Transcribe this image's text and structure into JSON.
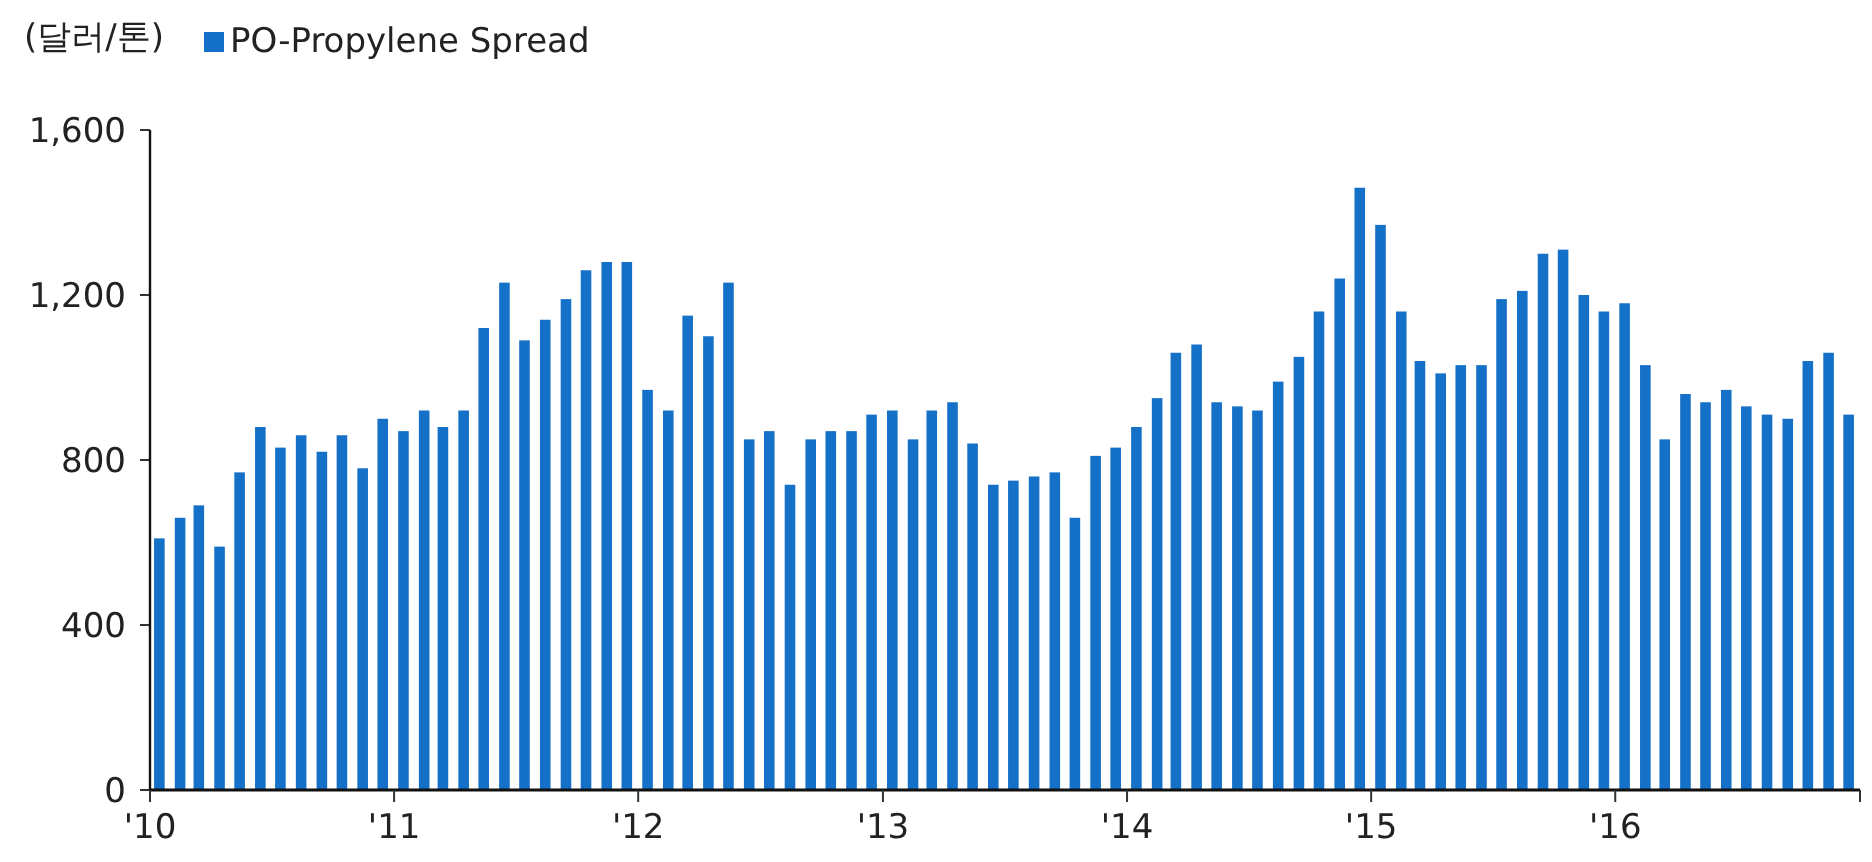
{
  "chart_data": {
    "type": "bar",
    "ylabel": "(달러/톤)",
    "legend": "top left",
    "x": [
      "2010-01-15",
      "2010-02-15",
      "2010-03-15",
      "2010-04-15",
      "2010-05-15",
      "2010-06-15",
      "2010-07-15",
      "2010-08-15",
      "2010-09-15",
      "2010-10-15",
      "2010-11-15",
      "2010-12-15",
      "2011-01-15",
      "2011-02-15",
      "2011-03-15",
      "2011-04-15",
      "2011-05-15",
      "2011-06-15",
      "2011-07-15",
      "2011-08-15",
      "2011-09-15",
      "2011-10-15",
      "2011-11-15",
      "2011-12-15",
      "2012-01-15",
      "2012-02-15",
      "2012-03-15",
      "2012-04-15",
      "2012-05-15",
      "2012-06-15",
      "2012-07-15",
      "2012-08-15",
      "2012-09-15",
      "2012-10-15",
      "2012-11-15",
      "2012-12-15",
      "2013-01-15",
      "2013-02-15",
      "2013-03-15",
      "2013-04-15",
      "2013-05-15",
      "2013-06-15",
      "2013-07-15",
      "2013-08-15",
      "2013-09-15",
      "2013-10-15",
      "2013-11-15",
      "2013-12-15",
      "2014-01-15",
      "2014-02-15",
      "2014-03-15",
      "2014-04-15",
      "2014-05-15",
      "2014-06-15",
      "2014-07-15",
      "2014-08-15",
      "2014-09-15",
      "2014-10-15",
      "2014-11-15",
      "2014-12-15",
      "2015-01-15",
      "2015-02-15",
      "2015-03-15",
      "2015-04-15",
      "2015-05-15",
      "2015-06-15",
      "2015-07-15",
      "2015-08-15",
      "2015-09-15",
      "2015-10-15",
      "2015-11-15",
      "2015-12-15",
      "2016-01-15",
      "2016-02-15",
      "2016-03-15",
      "2016-04-15",
      "2016-05-15",
      "2016-06-15",
      "2016-07-15",
      "2016-08-15",
      "2016-09-15",
      "2016-10-15",
      "2016-11-15",
      "2016-12-15"
    ],
    "series": [
      {
        "name": "PO-Propylene Spread",
        "color": "#1570c8",
        "values": [
          610,
          660,
          690,
          590,
          770,
          880,
          830,
          860,
          820,
          860,
          780,
          900,
          870,
          920,
          880,
          920,
          1120,
          1230,
          1090,
          1140,
          1190,
          1260,
          1280,
          1280,
          970,
          920,
          1150,
          1100,
          1230,
          850,
          870,
          740,
          850,
          870,
          870,
          910,
          920,
          850,
          920,
          940,
          840,
          740,
          750,
          760,
          770,
          660,
          810,
          830,
          880,
          950,
          1060,
          1080,
          940,
          930,
          920,
          990,
          1050,
          1160,
          1240,
          1460,
          1370,
          1160,
          1040,
          1010,
          1030,
          1030,
          1190,
          1210,
          1300,
          1310,
          1200,
          1160,
          1180,
          1030,
          850,
          960,
          940,
          970,
          930,
          910,
          900,
          1040,
          1060,
          910
        ]
      }
    ],
    "xlim": [
      "2010-01-01",
      "2017-01-01"
    ],
    "xticks": [
      {
        "value": "2010-01-01",
        "label": "'10"
      },
      {
        "value": "2011-01-01",
        "label": "'11"
      },
      {
        "value": "2012-01-01",
        "label": "'12"
      },
      {
        "value": "2013-01-01",
        "label": "'13"
      },
      {
        "value": "2014-01-01",
        "label": "'14"
      },
      {
        "value": "2015-01-01",
        "label": "'15"
      },
      {
        "value": "2016-01-01",
        "label": "'16"
      },
      {
        "value": "2017-01-01",
        "label": null
      }
    ],
    "ylim": [
      0,
      1600
    ],
    "yticks": [
      {
        "value": 0,
        "label": "0"
      },
      {
        "value": 400,
        "label": "400"
      },
      {
        "value": 800,
        "label": "800"
      },
      {
        "value": 1200,
        "label": "1,200"
      },
      {
        "value": 1600,
        "label": "1,600"
      }
    ]
  }
}
